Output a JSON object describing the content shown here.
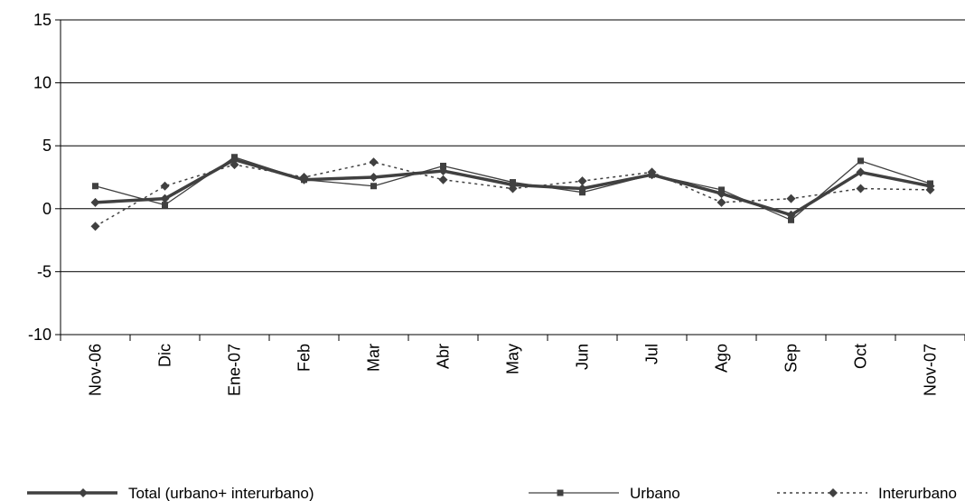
{
  "chart_data": {
    "type": "line",
    "title": "",
    "xlabel": "",
    "ylabel": "",
    "ylim": [
      -10,
      15
    ],
    "yticks": [
      -10,
      -5,
      0,
      5,
      10,
      15
    ],
    "ytick_labels": [
      "-10",
      "-5",
      "0",
      "5",
      "10",
      "15"
    ],
    "grid": "horizontal",
    "legend_position": "bottom",
    "categories": [
      "Nov-06",
      "Dic",
      "Ene-07",
      "Feb",
      "Mar",
      "Abr",
      "May",
      "Jun",
      "Jul",
      "Ago",
      "Sep",
      "Oct",
      "Nov-07"
    ],
    "series": [
      {
        "name": "Total (urbano+ interurbano)",
        "style": "thick-solid",
        "marker": "diamond",
        "color": "#404040",
        "values": [
          0.5,
          0.8,
          3.9,
          2.3,
          2.5,
          3.0,
          1.9,
          1.6,
          2.7,
          1.2,
          -0.5,
          2.9,
          1.8
        ]
      },
      {
        "name": "Urbano",
        "style": "thin-solid",
        "marker": "square",
        "color": "#404040",
        "values": [
          1.8,
          0.3,
          4.1,
          2.3,
          1.8,
          3.4,
          2.1,
          1.3,
          2.7,
          1.5,
          -0.9,
          3.8,
          2.0
        ]
      },
      {
        "name": "Interurbano",
        "style": "dotted",
        "marker": "diamond",
        "color": "#404040",
        "values": [
          -1.4,
          1.8,
          3.5,
          2.5,
          3.7,
          2.3,
          1.6,
          2.2,
          2.9,
          0.5,
          0.8,
          1.6,
          1.5
        ]
      }
    ]
  }
}
